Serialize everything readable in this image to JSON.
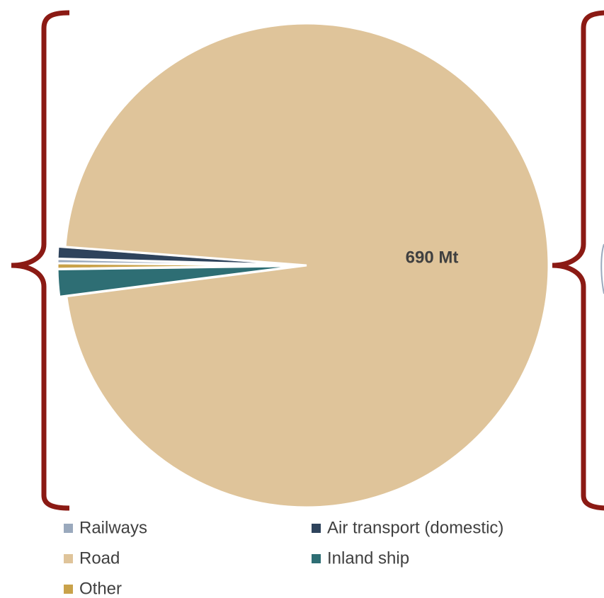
{
  "chart_data": {
    "type": "pie",
    "categories": [
      "Railways",
      "Air transport (domestic)",
      "Road",
      "Inland ship",
      "Other"
    ],
    "values": [
      2,
      5.7,
      690,
      12.9,
      2.6
    ],
    "value_labels": [
      null,
      null,
      "690 Mt",
      null,
      null
    ],
    "colors": [
      "#9aa9bd",
      "#2e435c",
      "#dfc49a",
      "#2e6e74",
      "#c9a24a"
    ]
  }
}
